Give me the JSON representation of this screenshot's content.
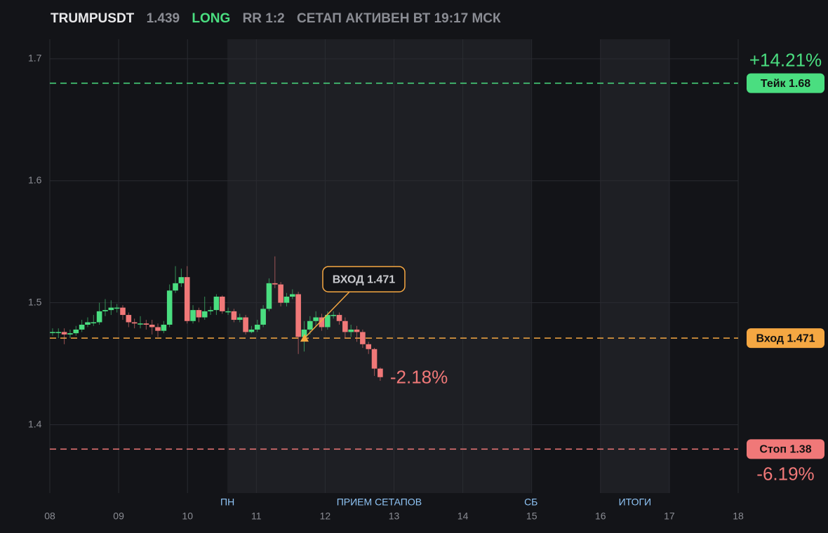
{
  "header": {
    "symbol": "TRUMPUSDT",
    "price": "1.439",
    "side": "LONG",
    "rr": "RR 1:2",
    "status": "СЕТАП АКТИВЕН ВТ 19:17 МСК"
  },
  "chart_data": {
    "type": "candlestick",
    "x": [
      8.04,
      8.125,
      8.21,
      8.295,
      8.38,
      8.465,
      8.55,
      8.635,
      8.72,
      8.805,
      8.89,
      8.975,
      9.06,
      9.145,
      9.23,
      9.315,
      9.4,
      9.485,
      9.57,
      9.655,
      9.74,
      9.825,
      9.91,
      9.995,
      10.08,
      10.165,
      10.25,
      10.335,
      10.42,
      10.505,
      10.59,
      10.675,
      10.76,
      10.845,
      10.93,
      11.015,
      11.1,
      11.185,
      11.27,
      11.355,
      11.44,
      11.525,
      11.61,
      11.695,
      11.78,
      11.865,
      11.95,
      12.035,
      12.12,
      12.205,
      12.29,
      12.375,
      12.46,
      12.545,
      12.63,
      12.715,
      12.8
    ],
    "open": [
      1.476,
      1.476,
      1.476,
      1.474,
      1.475,
      1.478,
      1.482,
      1.484,
      1.484,
      1.493,
      1.494,
      1.496,
      1.496,
      1.49,
      1.484,
      1.483,
      1.483,
      1.482,
      1.48,
      1.477,
      1.482,
      1.51,
      1.516,
      1.521,
      1.485,
      1.494,
      1.488,
      1.493,
      1.494,
      1.505,
      1.493,
      1.493,
      1.486,
      1.488,
      1.476,
      1.478,
      1.482,
      1.495,
      1.516,
      1.515,
      1.5,
      1.505,
      1.507,
      1.472,
      1.478,
      1.485,
      1.488,
      1.48,
      1.49,
      1.49,
      1.485,
      1.476,
      1.478,
      1.476,
      1.466,
      1.462,
      1.446
    ],
    "high": [
      1.479,
      1.479,
      1.479,
      1.478,
      1.481,
      1.486,
      1.488,
      1.49,
      1.5,
      1.503,
      1.502,
      1.499,
      1.498,
      1.492,
      1.487,
      1.489,
      1.486,
      1.486,
      1.483,
      1.485,
      1.515,
      1.53,
      1.528,
      1.53,
      1.498,
      1.496,
      1.505,
      1.497,
      1.507,
      1.506,
      1.496,
      1.495,
      1.491,
      1.49,
      1.481,
      1.486,
      1.498,
      1.52,
      1.538,
      1.517,
      1.508,
      1.511,
      1.509,
      1.485,
      1.489,
      1.493,
      1.491,
      1.493,
      1.493,
      1.492,
      1.488,
      1.482,
      1.481,
      1.478,
      1.468,
      1.463,
      1.447
    ],
    "low": [
      1.473,
      1.471,
      1.466,
      1.471,
      1.473,
      1.476,
      1.48,
      1.481,
      1.482,
      1.489,
      1.49,
      1.492,
      1.486,
      1.48,
      1.479,
      1.479,
      1.478,
      1.474,
      1.472,
      1.475,
      1.48,
      1.508,
      1.513,
      1.483,
      1.483,
      1.484,
      1.486,
      1.49,
      1.49,
      1.491,
      1.49,
      1.484,
      1.484,
      1.474,
      1.475,
      1.476,
      1.48,
      1.493,
      1.512,
      1.497,
      1.497,
      1.503,
      1.458,
      1.46,
      1.474,
      1.481,
      1.477,
      1.478,
      1.487,
      1.482,
      1.471,
      1.472,
      1.468,
      1.463,
      1.458,
      1.44,
      1.436
    ],
    "close": [
      1.476,
      1.476,
      1.474,
      1.475,
      1.478,
      1.482,
      1.484,
      1.484,
      1.493,
      1.494,
      1.496,
      1.496,
      1.49,
      1.484,
      1.483,
      1.483,
      1.482,
      1.48,
      1.477,
      1.482,
      1.51,
      1.516,
      1.521,
      1.485,
      1.494,
      1.488,
      1.493,
      1.494,
      1.505,
      1.493,
      1.493,
      1.486,
      1.488,
      1.476,
      1.478,
      1.482,
      1.495,
      1.516,
      1.515,
      1.5,
      1.505,
      1.507,
      1.472,
      1.478,
      1.485,
      1.488,
      1.48,
      1.49,
      1.49,
      1.485,
      1.476,
      1.478,
      1.476,
      1.466,
      1.462,
      1.446,
      1.439
    ],
    "up_color": "#4ade80",
    "down_color": "#f07878",
    "xlim": [
      8,
      18
    ],
    "xticks": [
      {
        "value": 8,
        "label": "08"
      },
      {
        "value": 9,
        "label": "09"
      },
      10,
      11,
      12,
      13,
      14,
      15,
      16,
      17,
      18
    ],
    "ylim": [
      1.344,
      1.716
    ],
    "yticks": [
      1.4,
      1.5,
      1.6,
      1.7
    ],
    "grid": true,
    "zones": [
      {
        "from": 10.58,
        "to": 14.99,
        "label": "ПРИЕМ СЕТАПОВ"
      },
      {
        "from": 16,
        "to": 17,
        "label": "ИТОГИ"
      }
    ],
    "markers": [
      {
        "x": 10.58,
        "label": "ПН"
      },
      {
        "x": 14.99,
        "label": "СБ"
      }
    ],
    "levels": [
      {
        "value": 1.68,
        "label": "Тейк 1.68",
        "change_label": "+14.21%",
        "color": "#4ade80"
      },
      {
        "value": 1.471,
        "label": "Вход 1.471",
        "color": "#f5a742"
      },
      {
        "value": 1.38,
        "label": "Стоп 1.38",
        "change_label": "-6.19%",
        "color": "#f07878"
      }
    ],
    "entry": {
      "x": 11.7,
      "value": 1.471,
      "label": "ВХОД 1.471"
    },
    "last_change": "-2.18%"
  }
}
